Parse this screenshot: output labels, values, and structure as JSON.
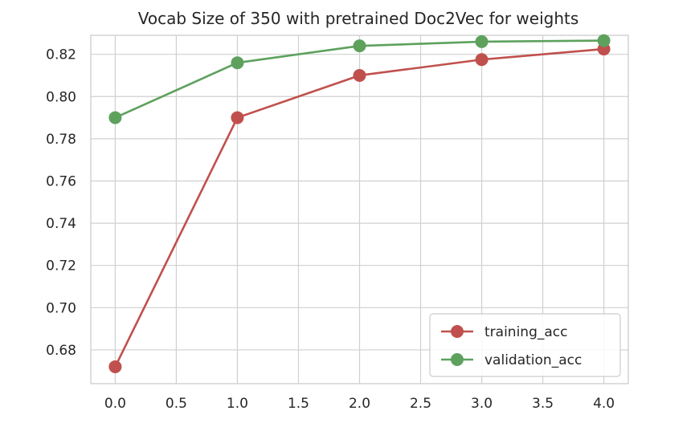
{
  "chart_data": {
    "type": "line",
    "title": "Vocab Size of 350 with pretrained Doc2Vec for weights",
    "xlabel": "",
    "ylabel": "",
    "x": [
      0,
      1,
      2,
      3,
      4
    ],
    "xlim": [
      -0.2,
      4.2
    ],
    "ylim": [
      0.664,
      0.829
    ],
    "xticks": [
      0.0,
      0.5,
      1.0,
      1.5,
      2.0,
      2.5,
      3.0,
      3.5,
      4.0
    ],
    "xtick_labels": [
      "0.0",
      "0.5",
      "1.0",
      "1.5",
      "2.0",
      "2.5",
      "3.0",
      "3.5",
      "4.0"
    ],
    "yticks": [
      0.68,
      0.7,
      0.72,
      0.74,
      0.76,
      0.78,
      0.8,
      0.82
    ],
    "ytick_labels": [
      "0.68",
      "0.70",
      "0.72",
      "0.74",
      "0.76",
      "0.78",
      "0.80",
      "0.82"
    ],
    "grid": true,
    "legend_position": "lower-right",
    "series": [
      {
        "name": "training_acc",
        "color": "#c0504d",
        "marker": "circle",
        "values": [
          0.672,
          0.79,
          0.81,
          0.8175,
          0.8225
        ]
      },
      {
        "name": "validation_acc",
        "color": "#5da15d",
        "marker": "circle",
        "values": [
          0.79,
          0.816,
          0.824,
          0.826,
          0.8265
        ]
      }
    ]
  }
}
